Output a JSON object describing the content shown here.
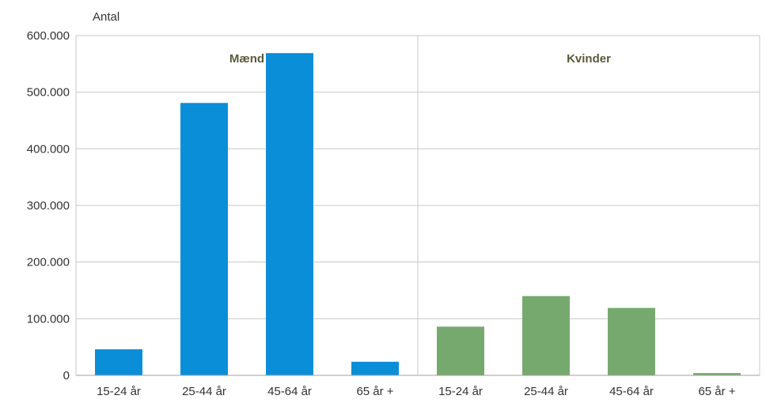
{
  "chart_data": {
    "type": "bar",
    "ylabel": "Antal",
    "ylim": [
      0,
      600000
    ],
    "yticks": [
      0,
      100000,
      200000,
      300000,
      400000,
      500000,
      600000
    ],
    "ytick_labels": [
      "0",
      "100.000",
      "200.000",
      "300.000",
      "400.000",
      "500.000",
      "600.000"
    ],
    "grid": true,
    "groups": [
      {
        "name": "Mænd",
        "color": "#0a8ed8",
        "categories": [
          "15-24 år",
          "25-44 år",
          "45-64 år",
          "65 år +"
        ],
        "values": [
          46000,
          481000,
          569000,
          24000
        ]
      },
      {
        "name": "Kvinder",
        "color": "#76a96e",
        "categories": [
          "15-24 år",
          "25-44 år",
          "45-64 år",
          "65 år +"
        ],
        "values": [
          86000,
          140000,
          119000,
          4000
        ]
      }
    ]
  }
}
